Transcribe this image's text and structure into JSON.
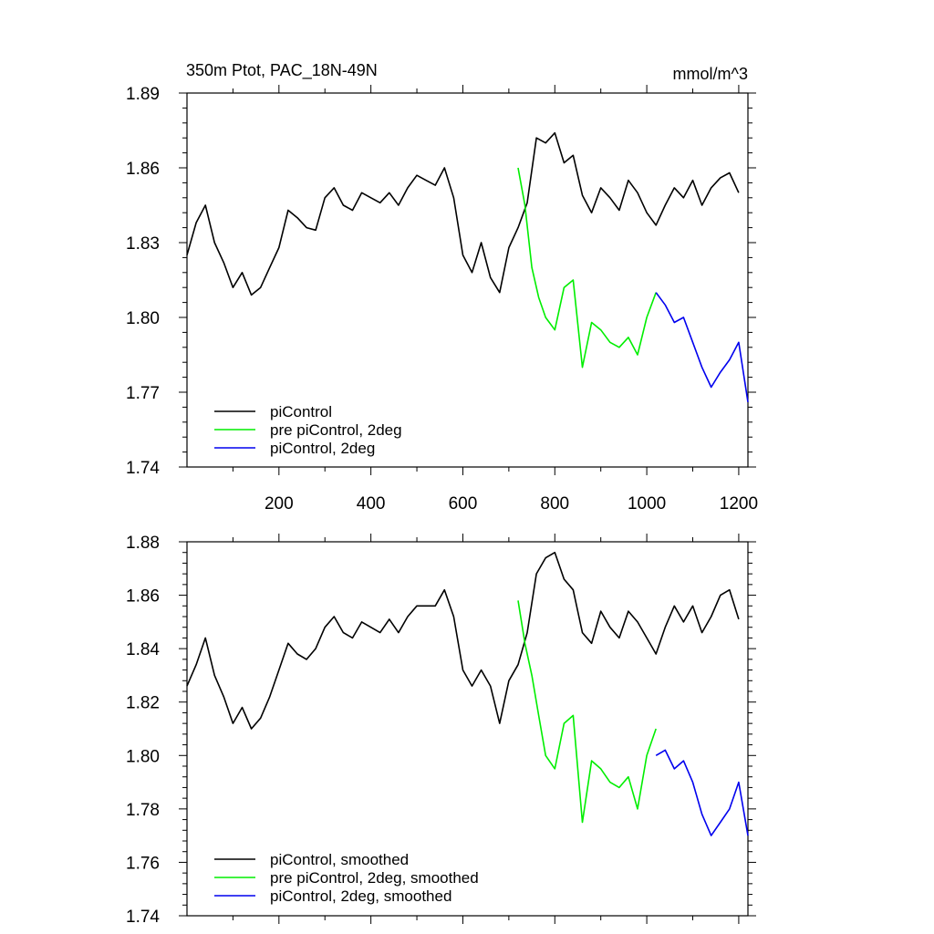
{
  "chart_data": [
    {
      "type": "line",
      "title_left": "350m Ptot, PAC_18N-49N",
      "title_right": "mmol/m^3",
      "xlabel": "",
      "ylabel": "",
      "xlim": [
        0,
        1220
      ],
      "ylim": [
        1.74,
        1.89
      ],
      "x_ticks": [
        200,
        400,
        600,
        800,
        1000,
        1200
      ],
      "x_tick_labels": [
        "200",
        "400",
        "600",
        "800",
        "1000",
        "1200"
      ],
      "y_ticks": [
        1.74,
        1.77,
        1.8,
        1.83,
        1.86,
        1.89
      ],
      "y_tick_labels": [
        "1.74",
        "1.77",
        "1.80",
        "1.83",
        "1.86",
        "1.89"
      ],
      "legend_position": "bottom-left",
      "series": [
        {
          "name": "piControl",
          "color": "#000000",
          "x": [
            0,
            20,
            40,
            60,
            80,
            100,
            120,
            140,
            160,
            180,
            200,
            220,
            240,
            260,
            280,
            300,
            320,
            340,
            360,
            380,
            400,
            420,
            440,
            460,
            480,
            500,
            520,
            540,
            560,
            580,
            600,
            620,
            640,
            660,
            680,
            700,
            720,
            740,
            760,
            780,
            800,
            820,
            840,
            860,
            880,
            900,
            920,
            940,
            960,
            980,
            1000,
            1020,
            1040,
            1060,
            1080,
            1100,
            1120,
            1140,
            1160,
            1180,
            1200
          ],
          "values": [
            1.825,
            1.838,
            1.845,
            1.83,
            1.822,
            1.812,
            1.818,
            1.809,
            1.812,
            1.82,
            1.828,
            1.843,
            1.84,
            1.836,
            1.835,
            1.848,
            1.852,
            1.845,
            1.843,
            1.85,
            1.848,
            1.846,
            1.85,
            1.845,
            1.852,
            1.857,
            1.855,
            1.853,
            1.86,
            1.848,
            1.825,
            1.818,
            1.83,
            1.816,
            1.81,
            1.828,
            1.836,
            1.846,
            1.872,
            1.87,
            1.874,
            1.862,
            1.865,
            1.849,
            1.842,
            1.852,
            1.848,
            1.843,
            1.855,
            1.85,
            1.842,
            1.837,
            1.845,
            1.852,
            1.848,
            1.855,
            1.845,
            1.852,
            1.856,
            1.858,
            1.85
          ]
        },
        {
          "name": "pre piControl, 2deg",
          "color": "#00ee00",
          "x": [
            720,
            735,
            750,
            765,
            780,
            800,
            820,
            840,
            860,
            880,
            900,
            920,
            940,
            960,
            980,
            1000,
            1020
          ],
          "values": [
            1.86,
            1.845,
            1.82,
            1.808,
            1.8,
            1.795,
            1.812,
            1.815,
            1.78,
            1.798,
            1.795,
            1.79,
            1.788,
            1.792,
            1.785,
            1.8,
            1.81
          ]
        },
        {
          "name": "piControl, 2deg",
          "color": "#0000ee",
          "x": [
            1020,
            1040,
            1060,
            1080,
            1100,
            1120,
            1140,
            1160,
            1180,
            1200,
            1220
          ],
          "values": [
            1.81,
            1.805,
            1.798,
            1.8,
            1.79,
            1.78,
            1.772,
            1.778,
            1.783,
            1.79,
            1.766
          ]
        }
      ]
    },
    {
      "type": "line",
      "xlabel": "",
      "ylabel": "",
      "xlim": [
        0,
        1220
      ],
      "ylim": [
        1.74,
        1.88
      ],
      "y_ticks": [
        1.74,
        1.76,
        1.78,
        1.8,
        1.82,
        1.84,
        1.86,
        1.88
      ],
      "y_tick_labels": [
        "1.74",
        "1.76",
        "1.78",
        "1.80",
        "1.82",
        "1.84",
        "1.86",
        "1.88"
      ],
      "legend_position": "bottom-left",
      "series": [
        {
          "name": "piControl, smoothed",
          "color": "#000000",
          "x": [
            0,
            20,
            40,
            60,
            80,
            100,
            120,
            140,
            160,
            180,
            200,
            220,
            240,
            260,
            280,
            300,
            320,
            340,
            360,
            380,
            400,
            420,
            440,
            460,
            480,
            500,
            520,
            540,
            560,
            580,
            600,
            620,
            640,
            660,
            680,
            700,
            720,
            740,
            760,
            780,
            800,
            820,
            840,
            860,
            880,
            900,
            920,
            940,
            960,
            980,
            1000,
            1020,
            1040,
            1060,
            1080,
            1100,
            1120,
            1140,
            1160,
            1180,
            1200
          ],
          "values": [
            1.826,
            1.834,
            1.844,
            1.83,
            1.822,
            1.812,
            1.818,
            1.81,
            1.814,
            1.822,
            1.832,
            1.842,
            1.838,
            1.836,
            1.84,
            1.848,
            1.852,
            1.846,
            1.844,
            1.85,
            1.848,
            1.846,
            1.851,
            1.846,
            1.852,
            1.856,
            1.856,
            1.856,
            1.862,
            1.852,
            1.832,
            1.826,
            1.832,
            1.826,
            1.812,
            1.828,
            1.834,
            1.846,
            1.868,
            1.874,
            1.876,
            1.866,
            1.862,
            1.846,
            1.842,
            1.854,
            1.848,
            1.844,
            1.854,
            1.85,
            1.844,
            1.838,
            1.848,
            1.856,
            1.85,
            1.856,
            1.846,
            1.852,
            1.86,
            1.862,
            1.851
          ]
        },
        {
          "name": "pre piControl, 2deg, smoothed",
          "color": "#00ee00",
          "x": [
            720,
            735,
            750,
            765,
            780,
            800,
            820,
            840,
            860,
            880,
            900,
            920,
            940,
            960,
            980,
            1000,
            1020
          ],
          "values": [
            1.858,
            1.842,
            1.83,
            1.815,
            1.8,
            1.795,
            1.812,
            1.815,
            1.775,
            1.798,
            1.795,
            1.79,
            1.788,
            1.792,
            1.78,
            1.8,
            1.81
          ]
        },
        {
          "name": "piControl, 2deg, smoothed",
          "color": "#0000ee",
          "x": [
            1020,
            1040,
            1060,
            1080,
            1100,
            1120,
            1140,
            1160,
            1180,
            1200,
            1220
          ],
          "values": [
            1.8,
            1.802,
            1.795,
            1.798,
            1.79,
            1.778,
            1.77,
            1.775,
            1.78,
            1.79,
            1.77
          ]
        }
      ]
    }
  ]
}
